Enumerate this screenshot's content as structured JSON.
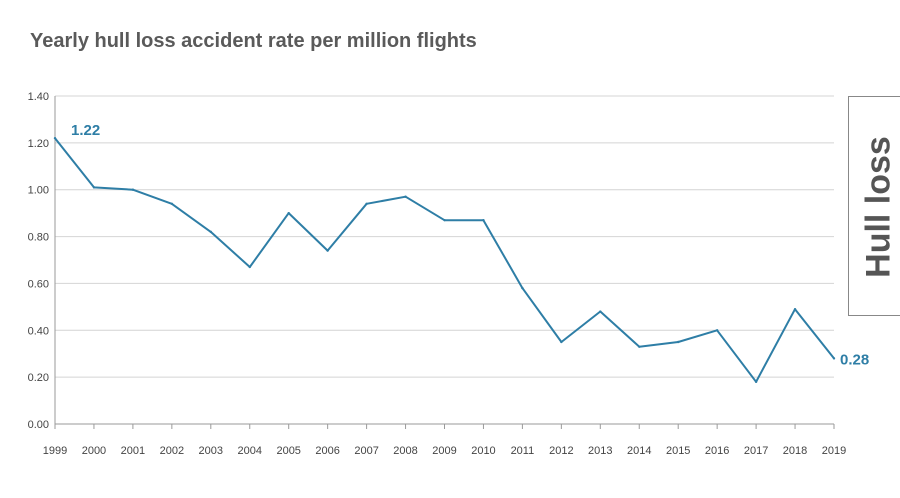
{
  "title": "Yearly hull loss accident rate per million flights",
  "side_label": "Hull loss",
  "chart_data": {
    "type": "line",
    "title": "Yearly hull loss accident rate per million flights",
    "xlabel": "",
    "ylabel": "",
    "ylim": [
      0,
      1.4
    ],
    "y_ticks": [
      "0.00",
      "0.20",
      "0.40",
      "0.60",
      "0.80",
      "1.00",
      "1.20",
      "1.40"
    ],
    "grid": true,
    "x": [
      "1999",
      "2000",
      "2001",
      "2002",
      "2003",
      "2004",
      "2005",
      "2006",
      "2007",
      "2008",
      "2009",
      "2010",
      "2011",
      "2012",
      "2013",
      "2014",
      "2015",
      "2016",
      "2017",
      "2018",
      "2019"
    ],
    "series": [
      {
        "values": [
          1.22,
          1.01,
          1.0,
          0.94,
          0.82,
          0.67,
          0.9,
          0.74,
          0.94,
          0.97,
          0.87,
          0.87,
          0.58,
          0.35,
          0.48,
          0.33,
          0.35,
          0.4,
          0.18,
          0.49,
          0.28
        ],
        "color": "#2e7ea6"
      }
    ],
    "annotations": [
      {
        "index": 0,
        "text": "1.22"
      },
      {
        "index": 20,
        "text": "0.28"
      }
    ]
  }
}
